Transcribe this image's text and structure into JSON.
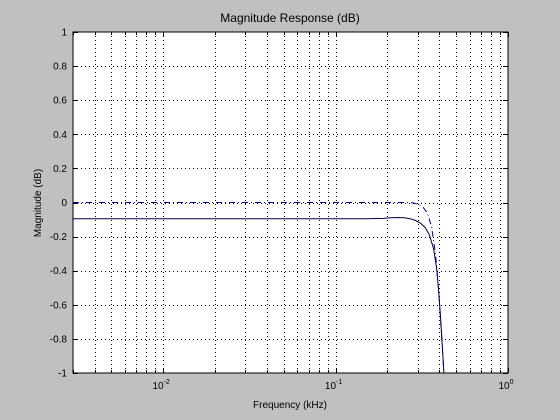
{
  "chart_data": {
    "type": "line",
    "title": "Magnitude Response (dB)",
    "xlabel": "Frequency (kHz)",
    "ylabel": "Magnitude (dB)",
    "xscale": "log",
    "xlim": [
      0.003,
      1
    ],
    "ylim": [
      -1,
      1
    ],
    "grid": true,
    "x_major_ticks": [
      0.01,
      0.1,
      1
    ],
    "x_tick_labels": [
      {
        "base": "10",
        "exp": "-2"
      },
      {
        "base": "10",
        "exp": "-1"
      },
      {
        "base": "10",
        "exp": "0"
      }
    ],
    "y_ticks": [
      -1,
      -0.8,
      -0.6,
      -0.4,
      -0.2,
      0,
      0.2,
      0.4,
      0.6,
      0.8,
      1
    ],
    "y_tick_labels": [
      "-1",
      "-0.8",
      "-0.6",
      "-0.4",
      "-0.2",
      "0",
      "0.2",
      "0.4",
      "0.6",
      "0.8",
      "1"
    ],
    "series": [
      {
        "style": "solid",
        "color": "#000040",
        "x": [
          0.003,
          0.05,
          0.1,
          0.15,
          0.19,
          0.21,
          0.23,
          0.25,
          0.27,
          0.29,
          0.31,
          0.33,
          0.35,
          0.37,
          0.385,
          0.395,
          0.405,
          0.415,
          0.425
        ],
        "y": [
          -0.095,
          -0.095,
          -0.095,
          -0.095,
          -0.093,
          -0.09,
          -0.088,
          -0.09,
          -0.095,
          -0.105,
          -0.12,
          -0.145,
          -0.19,
          -0.27,
          -0.38,
          -0.5,
          -0.65,
          -0.82,
          -1.0
        ]
      },
      {
        "style": "dashdot",
        "color": "#000080",
        "x": [
          0.003,
          0.01,
          0.05,
          0.1,
          0.2,
          0.25,
          0.28,
          0.3,
          0.32,
          0.34,
          0.36,
          0.38,
          0.395,
          0.41,
          0.425
        ],
        "y": [
          0.0,
          0.0,
          0.0,
          0.0,
          0.0,
          0.0,
          -0.002,
          -0.01,
          -0.025,
          -0.06,
          -0.14,
          -0.3,
          -0.5,
          -0.75,
          -1.0
        ]
      }
    ]
  }
}
